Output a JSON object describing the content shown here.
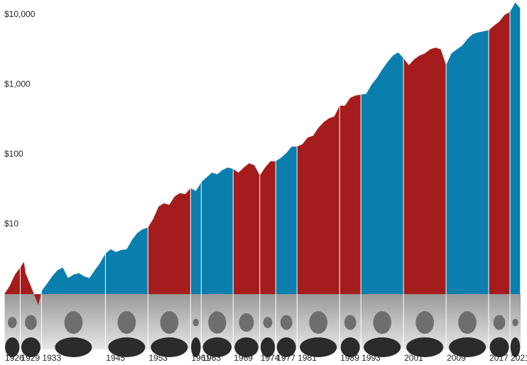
{
  "chart_data": {
    "type": "area",
    "log_scale": true,
    "ylim": [
      1,
      16300
    ],
    "yticks": [
      {
        "value": 10,
        "label": "$10"
      },
      {
        "value": 100,
        "label": "$100"
      },
      {
        "value": 1000,
        "label": "$1,000"
      },
      {
        "value": 10000,
        "label": "$10,000"
      }
    ],
    "xlim": [
      1926,
      2023
    ],
    "xticks": [
      1926,
      1929,
      1933,
      1945,
      1953,
      1961,
      1963,
      1969,
      1974,
      1977,
      1981,
      1989,
      1993,
      2001,
      2009,
      2017,
      2021
    ],
    "term_colors": [
      "#a51c1c",
      "#a51c1c",
      "#0a7fad",
      "#0a7fad",
      "#a51c1c",
      "#0a7fad",
      "#0a7fad",
      "#a51c1c",
      "#a51c1c",
      "#0a7fad",
      "#a51c1c",
      "#a51c1c",
      "#0a7fad",
      "#a51c1c",
      "#0a7fad",
      "#a51c1c",
      "#0a7fad"
    ],
    "x": [
      1926,
      1927,
      1928,
      1929,
      1929.7,
      1930,
      1931,
      1932.4,
      1933,
      1934,
      1935,
      1936,
      1937,
      1938,
      1939,
      1940,
      1941,
      1942,
      1943,
      1944,
      1945,
      1946,
      1947,
      1948,
      1949,
      1950,
      1951,
      1952,
      1953,
      1954,
      1955,
      1956,
      1957,
      1958,
      1959,
      1960,
      1961,
      1962,
      1963,
      1964,
      1965,
      1966,
      1967,
      1968,
      1969,
      1970,
      1971,
      1972,
      1973,
      1974,
      1975,
      1976,
      1977,
      1978,
      1979,
      1980,
      1981,
      1982,
      1983,
      1984,
      1985,
      1986,
      1987,
      1988,
      1989,
      1990,
      1991,
      1992,
      1993,
      1994,
      1995,
      1996,
      1997,
      1998,
      1999,
      2000,
      2001,
      2002,
      2003,
      2004,
      2005,
      2006,
      2007,
      2008,
      2009,
      2010,
      2011,
      2012,
      2013,
      2014,
      2015,
      2016,
      2017,
      2018,
      2019,
      2020,
      2021,
      2022,
      2022.9
    ],
    "values": [
      1.0,
      1.3,
      1.9,
      2.4,
      2.9,
      2.0,
      1.3,
      0.7,
      1.1,
      1.4,
      1.8,
      2.2,
      2.4,
      1.7,
      1.9,
      2.0,
      1.8,
      1.7,
      2.2,
      2.8,
      3.8,
      4.4,
      4.0,
      4.3,
      4.4,
      6,
      7.5,
      8.5,
      9,
      12,
      18,
      20,
      19,
      25,
      28,
      27,
      33,
      30,
      40,
      47,
      55,
      52,
      60,
      65,
      62,
      55,
      65,
      75,
      70,
      50,
      65,
      80,
      80,
      90,
      105,
      130,
      130,
      140,
      175,
      185,
      240,
      290,
      330,
      350,
      500,
      500,
      650,
      700,
      720,
      740,
      1000,
      1250,
      1650,
      2100,
      2600,
      2900,
      2400,
      1900,
      2300,
      2600,
      2800,
      3200,
      3400,
      3200,
      1900,
      2800,
      3200,
      3600,
      4500,
      5300,
      5600,
      5800,
      6000,
      7000,
      8000,
      10000,
      11000,
      15000,
      12500
    ]
  }
}
